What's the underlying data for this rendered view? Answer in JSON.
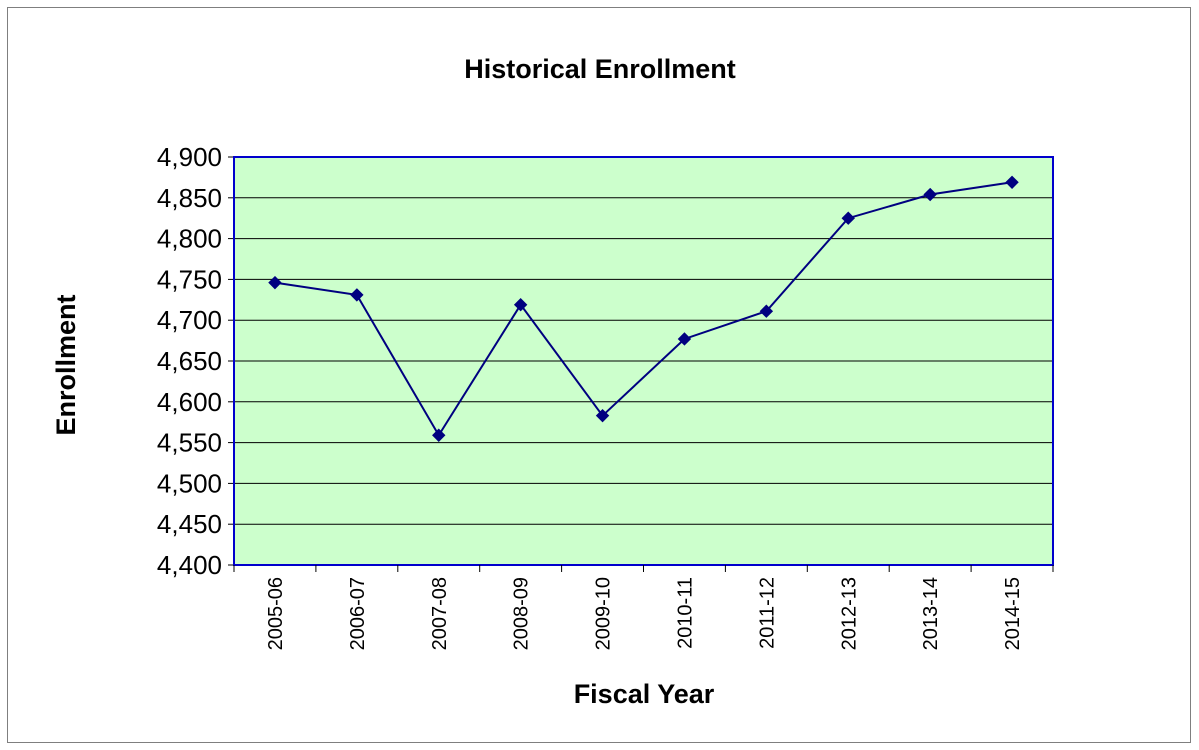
{
  "chart_data": {
    "type": "line",
    "title": "Historical Enrollment",
    "xlabel": "Fiscal Year",
    "ylabel": "Enrollment",
    "categories": [
      "2005-06",
      "2006-07",
      "2007-08",
      "2008-09",
      "2009-10",
      "2010-11",
      "2011-12",
      "2012-13",
      "2013-14",
      "2014-15"
    ],
    "series": [
      {
        "values": [
          4746,
          4731,
          4559,
          4719,
          4583,
          4677,
          4711,
          4825,
          4854,
          4869
        ]
      }
    ],
    "ylim": [
      4400,
      4900
    ],
    "yticks": [
      "4,400",
      "4,450",
      "4,500",
      "4,550",
      "4,600",
      "4,650",
      "4,700",
      "4,750",
      "4,800",
      "4,850",
      "4,900"
    ],
    "grid": true,
    "legend": "none",
    "colors": {
      "plot_background": "#ccffcc",
      "plot_border": "#0000cc",
      "line": "#000080",
      "marker": "#000080",
      "grid": "#000000"
    }
  }
}
